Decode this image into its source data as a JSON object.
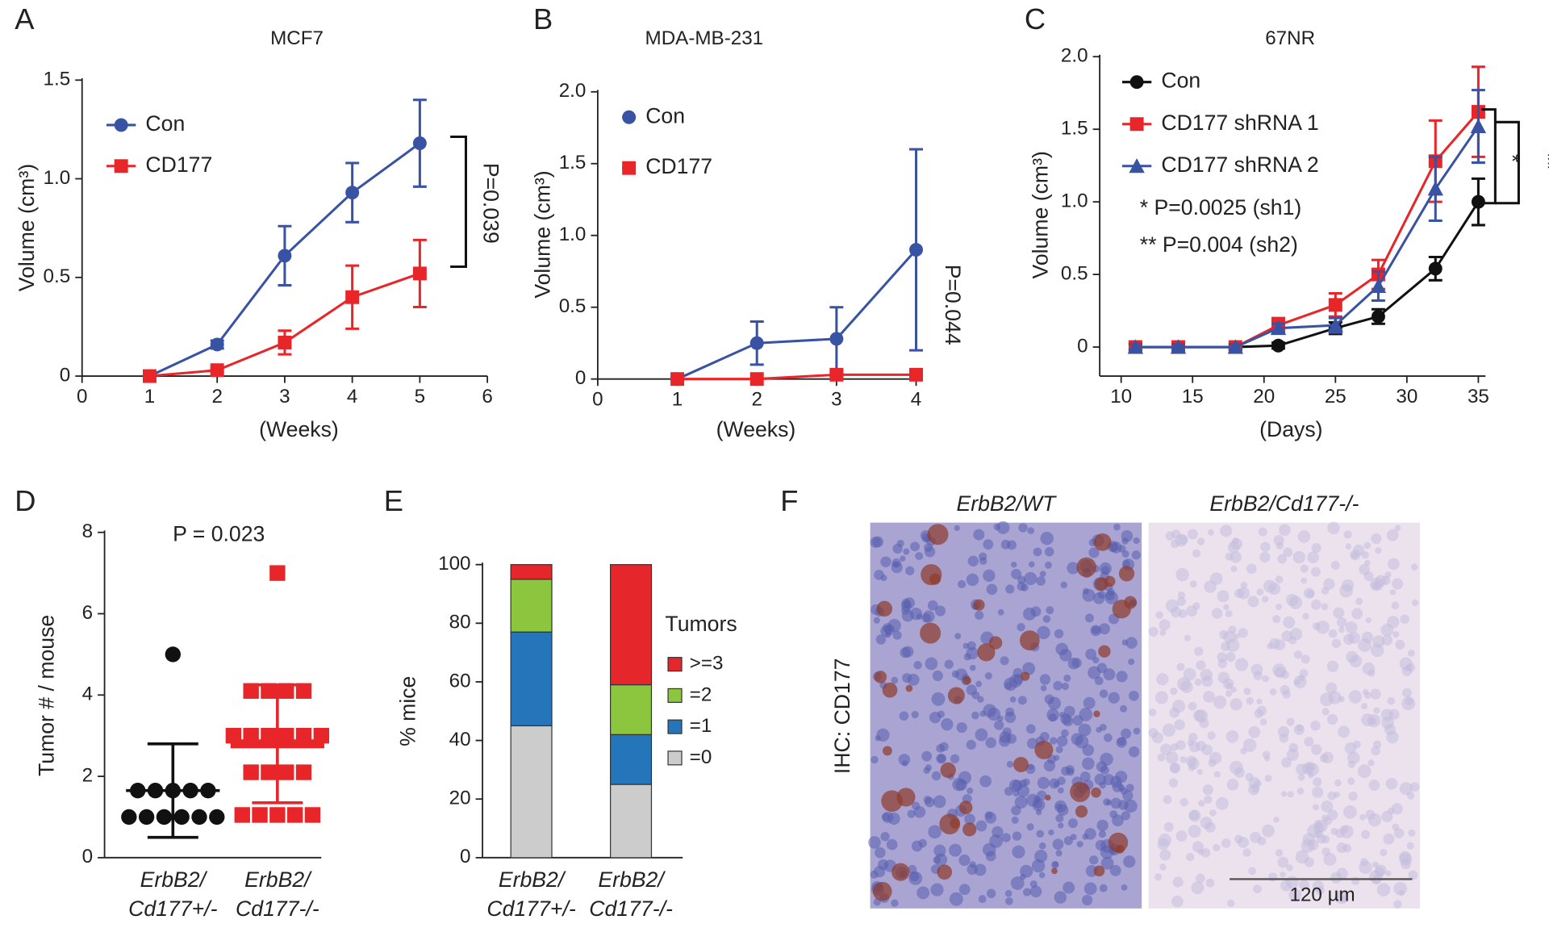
{
  "chart_data": [
    {
      "panel": "A",
      "type": "line",
      "title": "MCF7",
      "xlabel": "(Weeks)",
      "ylabel": "Volume (cm³)",
      "xlim": [
        0,
        6
      ],
      "xticks": [
        0,
        1,
        2,
        3,
        4,
        5,
        6
      ],
      "ylim": [
        0,
        1.5
      ],
      "yticks": [
        0,
        0.5,
        {
          "value": 1,
          "label": "1.0"
        },
        1.5
      ],
      "annotations": [
        "P=0.039"
      ],
      "series": [
        {
          "name": "Con",
          "color": "#3953a4",
          "marker": "circle",
          "x": [
            1,
            2,
            3,
            4,
            5
          ],
          "values": [
            0,
            0.16,
            0.61,
            0.93,
            1.18
          ],
          "errors": [
            0,
            0.02,
            0.15,
            0.15,
            0.22
          ]
        },
        {
          "name": "CD177",
          "color": "#e8262a",
          "marker": "square",
          "x": [
            1,
            2,
            3,
            4,
            5
          ],
          "values": [
            0,
            0.03,
            0.17,
            0.4,
            0.52
          ],
          "errors": [
            0,
            0.01,
            0.06,
            0.16,
            0.17
          ]
        }
      ]
    },
    {
      "panel": "B",
      "type": "line",
      "title": "MDA-MB-231",
      "xlabel": "(Weeks)",
      "ylabel": "Volume (cm³)",
      "xlim": [
        0,
        4
      ],
      "xticks": [
        0,
        1,
        2,
        3,
        4
      ],
      "ylim": [
        0,
        2
      ],
      "yticks": [
        0,
        0.5,
        {
          "value": 1,
          "label": "1.0"
        },
        1.5,
        {
          "value": 2,
          "label": "2.0"
        }
      ],
      "annotations": [
        "P=0.044"
      ],
      "series": [
        {
          "name": "Con",
          "color": "#3953a4",
          "marker": "circle",
          "x": [
            1,
            2,
            3,
            4
          ],
          "values": [
            0,
            0.25,
            0.28,
            0.9
          ],
          "errors": [
            0,
            0.15,
            0.22,
            0.7
          ]
        },
        {
          "name": "CD177",
          "color": "#e8262a",
          "marker": "square",
          "x": [
            1,
            2,
            3,
            4
          ],
          "values": [
            0,
            0,
            0.03,
            0.03
          ],
          "errors": [
            0,
            0,
            0.01,
            0.01
          ]
        }
      ]
    },
    {
      "panel": "C",
      "type": "line",
      "title": "67NR",
      "xlabel": "(Days)",
      "ylabel": "Volume (cm³)",
      "xlim": [
        8.5,
        35.5
      ],
      "xticks": [
        10,
        15,
        20,
        25,
        30,
        35
      ],
      "ylim": [
        -0.2,
        2
      ],
      "yticks": [
        0,
        0.5,
        {
          "value": 1,
          "label": "1.0"
        },
        1.5,
        {
          "value": 2,
          "label": "2.0"
        }
      ],
      "annotations": [
        "* P=0.0025 (sh1)",
        "** P=0.004 (sh2)",
        "*",
        "**"
      ],
      "series": [
        {
          "name": "Con",
          "color": "#111111",
          "marker": "circle",
          "x": [
            11,
            14,
            18,
            21,
            25,
            28,
            32,
            35
          ],
          "values": [
            0,
            0,
            0,
            0.01,
            0.13,
            0.21,
            0.54,
            1.0
          ],
          "errors": [
            0.02,
            0.02,
            0.02,
            0.02,
            0.04,
            0.05,
            0.08,
            0.16
          ]
        },
        {
          "name": "CD177 shRNA 1",
          "color": "#e8262a",
          "marker": "square",
          "x": [
            11,
            14,
            18,
            21,
            25,
            28,
            32,
            35
          ],
          "values": [
            0,
            0,
            0,
            0.15,
            0.29,
            0.5,
            1.28,
            1.62
          ],
          "errors": [
            0.03,
            0.02,
            0.02,
            0.05,
            0.08,
            0.1,
            0.28,
            0.31
          ]
        },
        {
          "name": "CD177 shRNA 2",
          "color": "#3953a4",
          "marker": "triangle",
          "x": [
            11,
            14,
            18,
            21,
            25,
            28,
            32,
            35
          ],
          "values": [
            0,
            0,
            0,
            0.13,
            0.15,
            0.42,
            1.09,
            1.52
          ],
          "errors": [
            0.02,
            0.02,
            0.02,
            0.03,
            0.05,
            0.1,
            0.22,
            0.25
          ]
        }
      ]
    },
    {
      "panel": "D",
      "type": "dot",
      "ylabel": "Tumor # / mouse",
      "categories": [
        [
          "ErbB2/",
          "Cd177+/-"
        ],
        [
          "ErbB2/",
          "Cd177-/-"
        ]
      ],
      "ylim": [
        0,
        8
      ],
      "yticks": [
        0,
        2,
        4,
        6,
        8
      ],
      "annotations": [
        "P = 0.023"
      ],
      "colors": [
        "#111111",
        "#e8262a"
      ],
      "markers": [
        "circle",
        "square"
      ],
      "values": [
        [
          5,
          1.65,
          1.65,
          1.65,
          1.65,
          1.65,
          1,
          1,
          1,
          1,
          1,
          1
        ],
        [
          7,
          4.1,
          4.1,
          4.1,
          4.1,
          3,
          3,
          3,
          3,
          3,
          3,
          2.1,
          2.1,
          2.1,
          2.1,
          1.05,
          1.05,
          1.05,
          1.05,
          1.05
        ]
      ],
      "means": [
        1.65,
        2.8
      ],
      "sds": [
        1.15,
        1.45
      ]
    },
    {
      "panel": "E",
      "type": "stacked_bar",
      "ylabel": "% mice",
      "legend_title": "Tumors",
      "categories": [
        [
          "ErbB2/",
          "Cd177+/-"
        ],
        [
          "ErbB2/",
          "Cd177-/-"
        ]
      ],
      "ylim": [
        0,
        100
      ],
      "yticks": [
        0,
        20,
        40,
        60,
        80,
        100
      ],
      "series": [
        {
          "name": "=0",
          "color": "#cccccc",
          "values": [
            45,
            25
          ]
        },
        {
          "name": "=1",
          "color": "#2575bb",
          "values": [
            32,
            17
          ]
        },
        {
          "name": "=2",
          "color": "#8cc63f",
          "values": [
            18,
            17
          ]
        },
        {
          "name": ">=3",
          "color": "#e5262b",
          "values": [
            5,
            41
          ]
        }
      ]
    },
    {
      "panel": "F",
      "type": "image",
      "titles": [
        "ErbB2/WT",
        "ErbB2/Cd177-/-"
      ],
      "ylabel": "IHC: CD177",
      "scale_label": "120 µm"
    }
  ]
}
